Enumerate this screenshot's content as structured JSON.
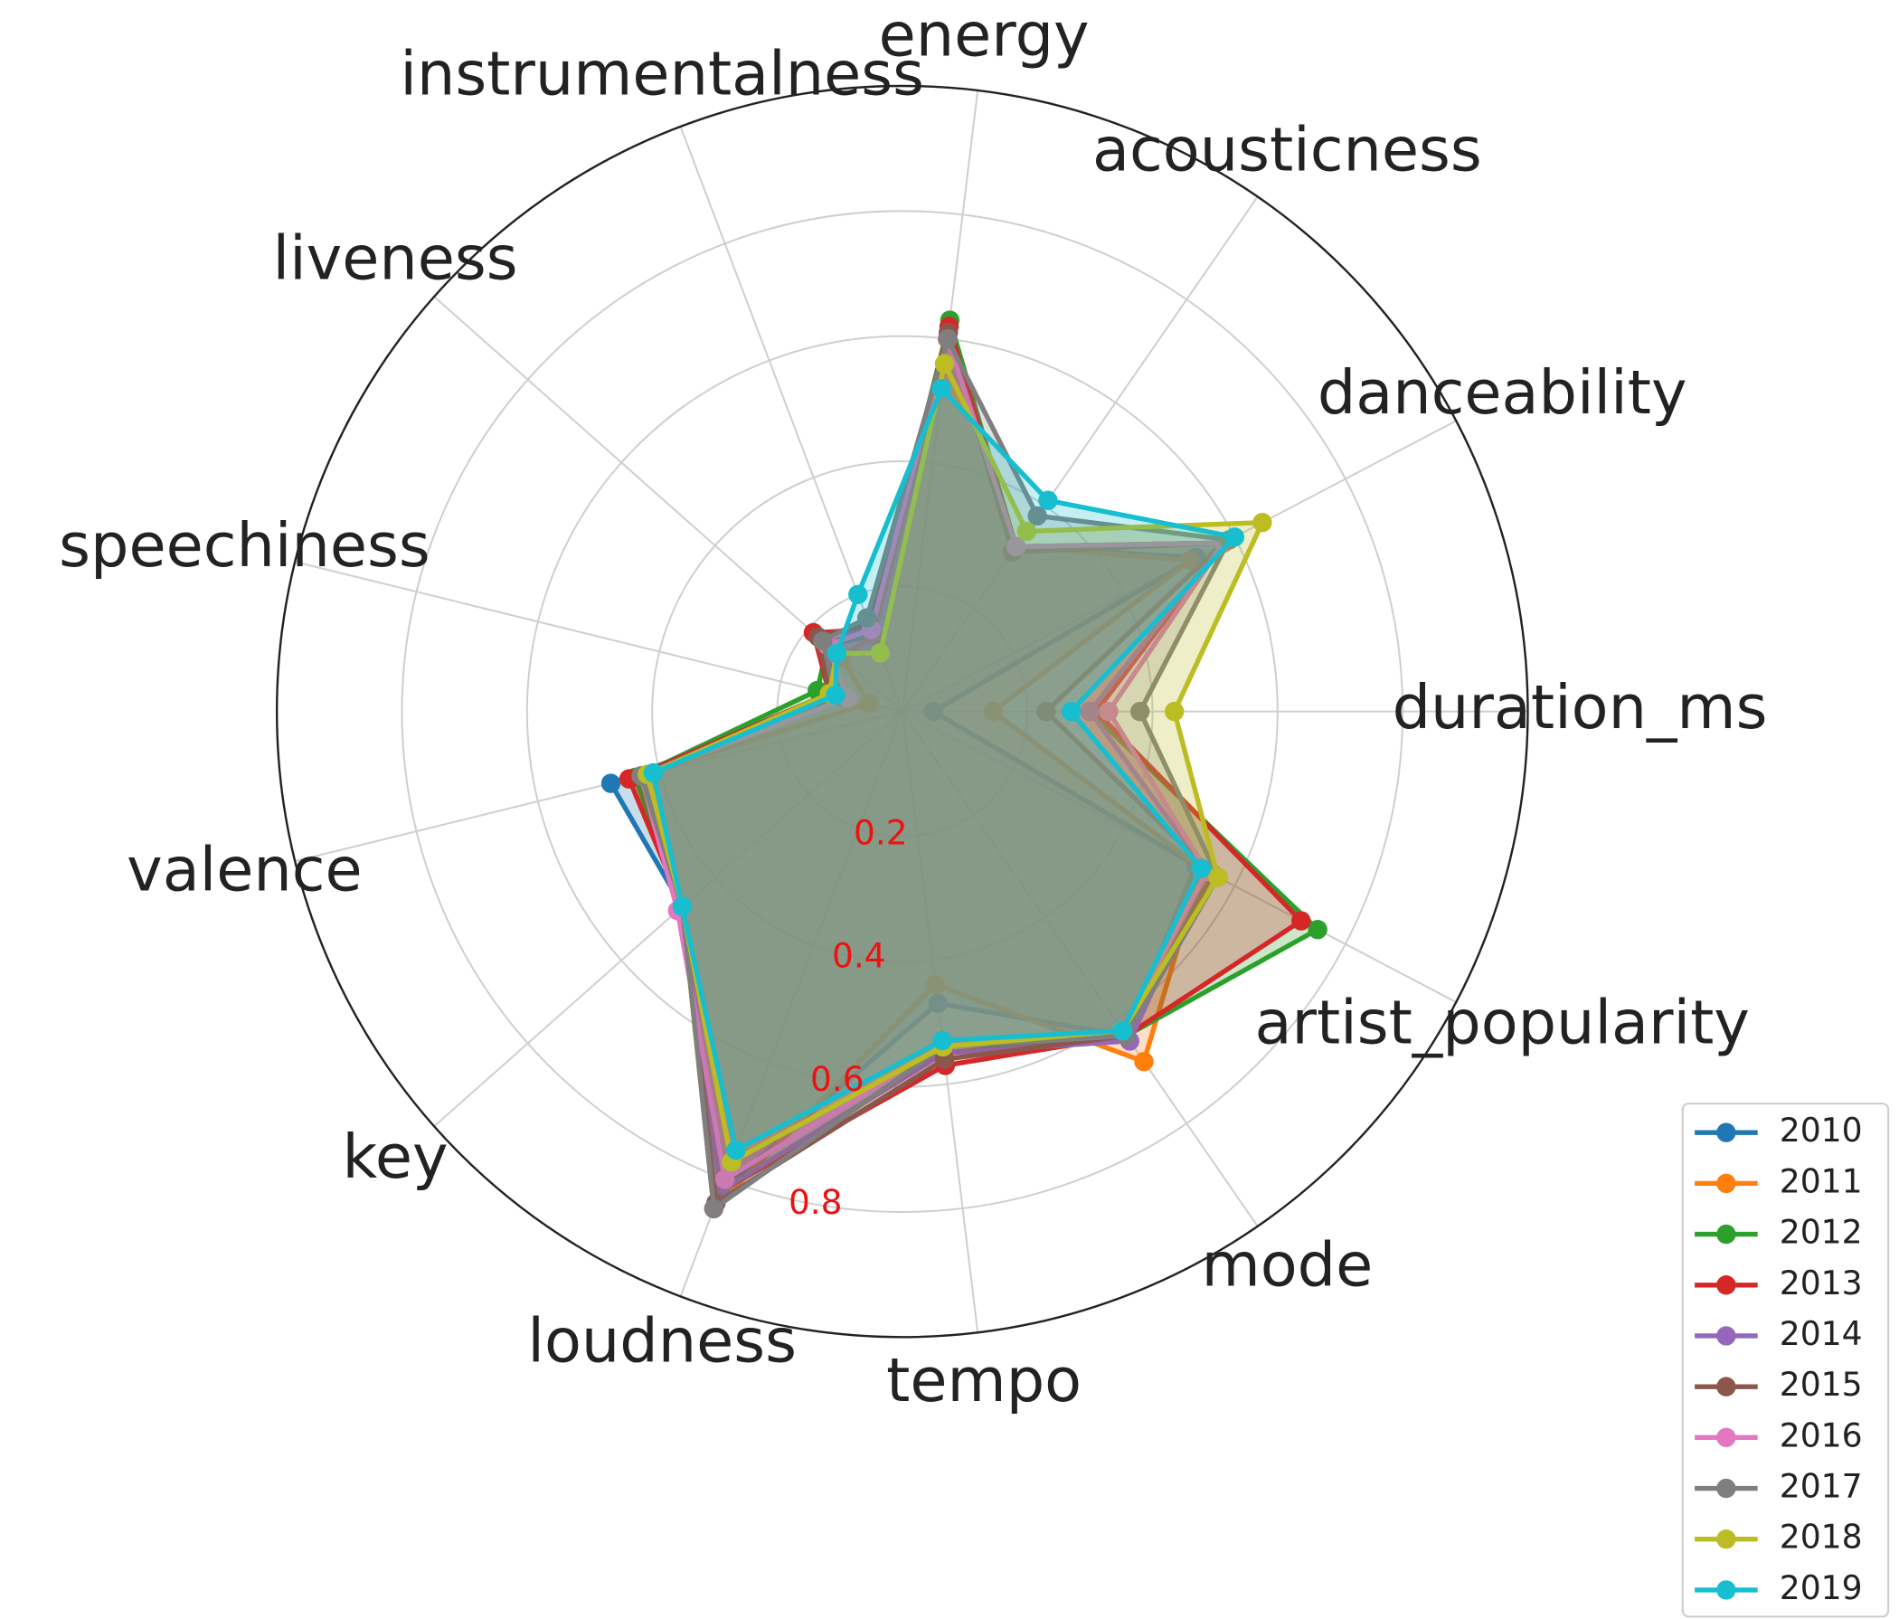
{
  "chart_data": {
    "type": "radar",
    "categories": [
      "duration_ms",
      "danceability",
      "acousticness",
      "energy",
      "instrumentalness",
      "liveness",
      "speechiness",
      "valence",
      "key",
      "loudness",
      "tempo",
      "mode",
      "artist_popularity"
    ],
    "ylim": [
      0,
      1
    ],
    "yticks": [
      0.2,
      0.4,
      0.6,
      0.8
    ],
    "grid": true,
    "legend": "lower right",
    "series": [
      {
        "name": "2010",
        "color": "#1f77b4",
        "values": [
          0.05,
          0.53,
          0.32,
          0.6,
          0.13,
          0.16,
          0.1,
          0.48,
          0.47,
          0.82,
          0.47,
          0.63,
          0.53
        ]
      },
      {
        "name": "2011",
        "color": "#ff7f0e",
        "values": [
          0.145,
          0.52,
          0.32,
          0.6,
          0.13,
          0.13,
          0.055,
          0.45,
          0.47,
          0.85,
          0.44,
          0.68,
          0.54
        ]
      },
      {
        "name": "2012",
        "color": "#2ca02c",
        "values": [
          0.3,
          0.58,
          0.32,
          0.63,
          0.14,
          0.16,
          0.14,
          0.44,
          0.47,
          0.82,
          0.55,
          0.63,
          0.75
        ]
      },
      {
        "name": "2013",
        "color": "#d62728",
        "values": [
          0.31,
          0.58,
          0.32,
          0.62,
          0.14,
          0.19,
          0.12,
          0.45,
          0.47,
          0.82,
          0.57,
          0.63,
          0.72
        ]
      },
      {
        "name": "2014",
        "color": "#9467bd",
        "values": [
          0.3,
          0.58,
          0.31,
          0.61,
          0.15,
          0.16,
          0.11,
          0.43,
          0.47,
          0.82,
          0.55,
          0.64,
          0.55
        ]
      },
      {
        "name": "2015",
        "color": "#8c564b",
        "values": [
          0.23,
          0.58,
          0.31,
          0.61,
          0.15,
          0.18,
          0.12,
          0.43,
          0.47,
          0.84,
          0.56,
          0.63,
          0.56
        ]
      },
      {
        "name": "2016",
        "color": "#e377c2",
        "values": [
          0.33,
          0.58,
          0.32,
          0.6,
          0.14,
          0.16,
          0.09,
          0.43,
          0.48,
          0.8,
          0.54,
          0.62,
          0.55
        ]
      },
      {
        "name": "2017",
        "color": "#7f7f7f",
        "values": [
          0.38,
          0.59,
          0.38,
          0.6,
          0.16,
          0.17,
          0.11,
          0.43,
          0.47,
          0.85,
          0.54,
          0.63,
          0.57
        ]
      },
      {
        "name": "2018",
        "color": "#bcbd22",
        "values": [
          0.435,
          0.65,
          0.35,
          0.56,
          0.1,
          0.14,
          0.12,
          0.42,
          0.47,
          0.77,
          0.54,
          0.62,
          0.57
        ]
      },
      {
        "name": "2019",
        "color": "#17becf",
        "values": [
          0.27,
          0.6,
          0.41,
          0.52,
          0.2,
          0.14,
          0.11,
          0.41,
          0.47,
          0.75,
          0.53,
          0.62,
          0.54
        ]
      }
    ]
  }
}
